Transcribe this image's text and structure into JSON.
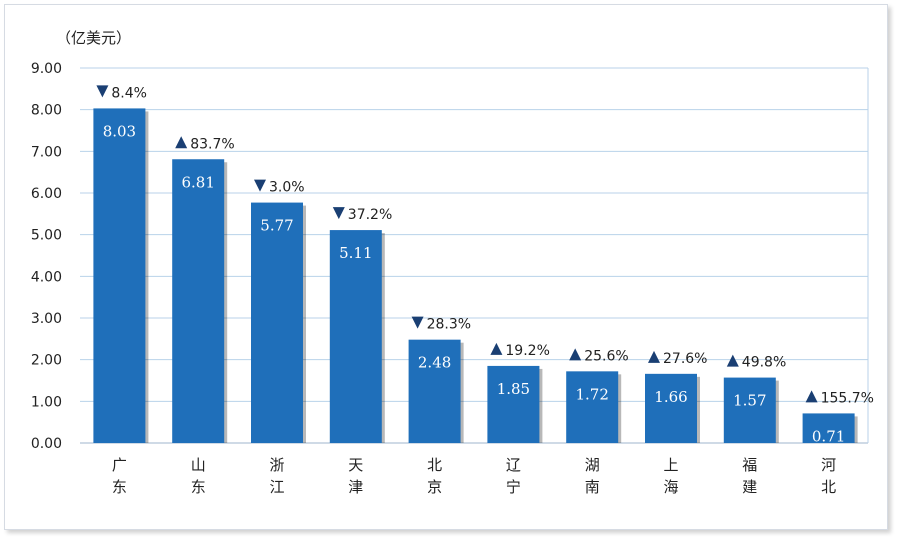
{
  "chart_data": {
    "type": "bar",
    "unit_label": "（亿美元）",
    "categories": [
      "广东",
      "山东",
      "浙江",
      "天津",
      "北京",
      "辽宁",
      "湖南",
      "上海",
      "福建",
      "河北"
    ],
    "values": [
      8.03,
      6.81,
      5.77,
      5.11,
      2.48,
      1.85,
      1.72,
      1.66,
      1.57,
      0.71
    ],
    "value_labels": [
      "8.03",
      "6.81",
      "5.77",
      "5.11",
      "2.48",
      "1.85",
      "1.72",
      "1.66",
      "1.57",
      "0.71"
    ],
    "changes": [
      {
        "dir": "down",
        "text": "8.4%"
      },
      {
        "dir": "up",
        "text": "83.7%"
      },
      {
        "dir": "down",
        "text": "3.0%"
      },
      {
        "dir": "down",
        "text": "37.2%"
      },
      {
        "dir": "down",
        "text": "28.3%"
      },
      {
        "dir": "up",
        "text": "19.2%"
      },
      {
        "dir": "up",
        "text": "25.6%"
      },
      {
        "dir": "up",
        "text": "27.6%"
      },
      {
        "dir": "up",
        "text": "49.8%"
      },
      {
        "dir": "up",
        "text": "155.7%"
      }
    ],
    "ylim": [
      0,
      9
    ],
    "yticks": [
      "0.00",
      "1.00",
      "2.00",
      "3.00",
      "4.00",
      "5.00",
      "6.00",
      "7.00",
      "8.00",
      "9.00"
    ],
    "grid": true,
    "colors": {
      "bar": "#1f6fba",
      "grid": "#b8d2ea",
      "plot_bg": "#ffffff",
      "arrow": "#1a3f73"
    }
  }
}
